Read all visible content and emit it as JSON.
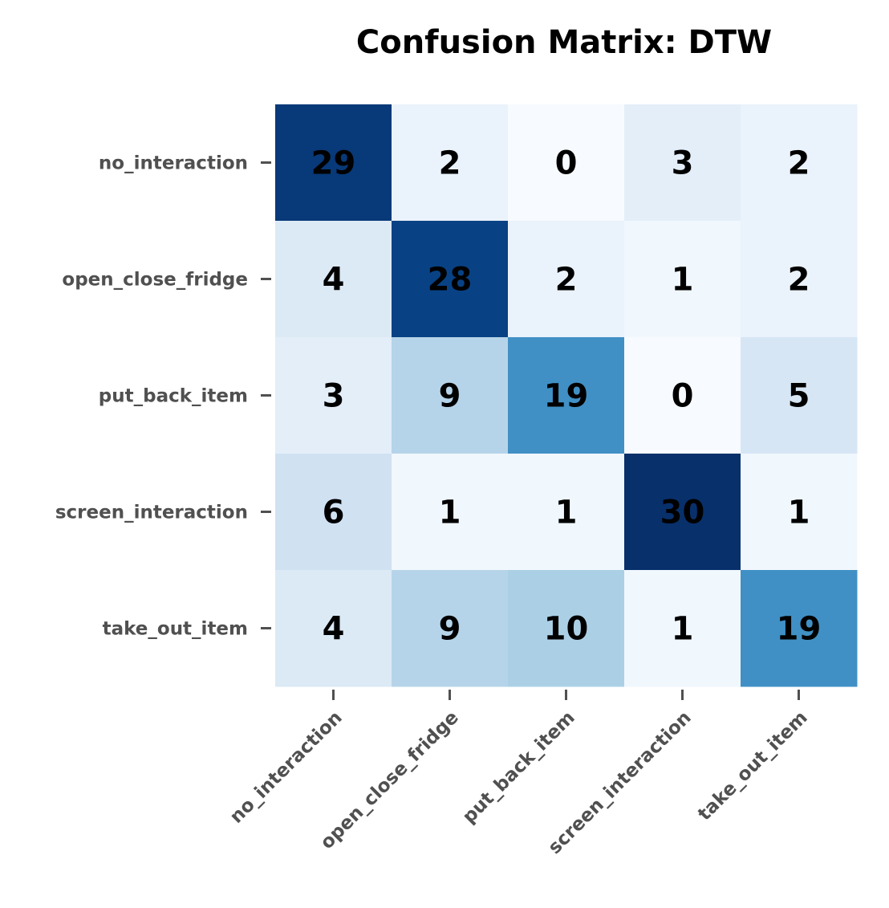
{
  "chart_data": {
    "type": "heatmap",
    "title": "Confusion Matrix: DTW",
    "xlabel": "",
    "ylabel": "",
    "x_categories": [
      "no_interaction",
      "open_close_fridge",
      "put_back_item",
      "screen_interaction",
      "take_out_item"
    ],
    "y_categories": [
      "no_interaction",
      "open_close_fridge",
      "put_back_item",
      "screen_interaction",
      "take_out_item"
    ],
    "values": [
      [
        29,
        2,
        0,
        3,
        2
      ],
      [
        4,
        28,
        2,
        1,
        2
      ],
      [
        3,
        9,
        19,
        0,
        5
      ],
      [
        6,
        1,
        1,
        30,
        1
      ],
      [
        4,
        9,
        10,
        1,
        19
      ]
    ],
    "colormap": "Blues",
    "colormap_colors": [
      "#f7fbff",
      "#deebf7",
      "#c6dbef",
      "#9ecae1",
      "#6baed6",
      "#4292c6",
      "#2171b5",
      "#08519c",
      "#08306b"
    ],
    "vmin": 0,
    "vmax": 30,
    "annotation_color": "#000000",
    "tick_color": "#505050",
    "colorbar": false,
    "grid": false
  }
}
